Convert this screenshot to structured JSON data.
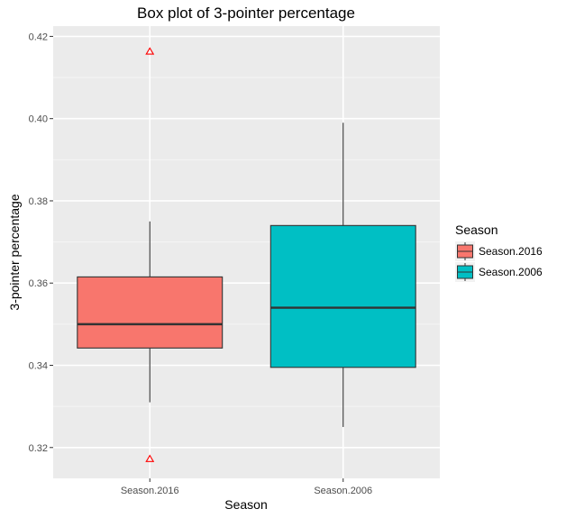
{
  "chart_data": {
    "type": "box",
    "title": "Box plot of 3-pointer percentage",
    "xlabel": "Season",
    "ylabel": "3-pointer percentage",
    "ylim": [
      0.3125,
      0.4225
    ],
    "yticks": [
      0.32,
      0.34,
      0.36,
      0.38,
      0.4,
      0.42
    ],
    "ytick_labels": [
      "0.32",
      "0.34",
      "0.36",
      "0.38",
      "0.40",
      "0.42"
    ],
    "categories": [
      "Season.2016",
      "Season.2006"
    ],
    "grid": true,
    "legend": {
      "title": "Season",
      "position": "right"
    },
    "series": [
      {
        "name": "Season.2016",
        "color": "#F8766D",
        "min": 0.331,
        "q1": 0.3442,
        "median": 0.35,
        "q3": 0.3615,
        "max": 0.375,
        "outliers": [
          0.4163,
          0.3172
        ]
      },
      {
        "name": "Season.2006",
        "color": "#00BFC4",
        "min": 0.325,
        "q1": 0.3395,
        "median": 0.354,
        "q3": 0.374,
        "max": 0.399,
        "outliers": []
      }
    ],
    "outlier_color": "#FF0000"
  }
}
